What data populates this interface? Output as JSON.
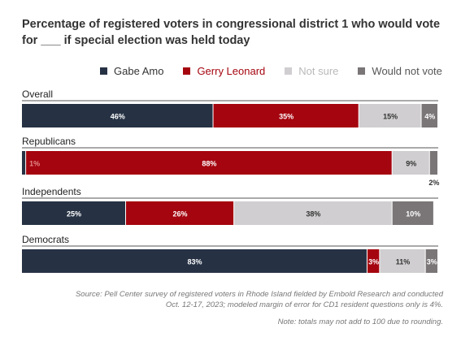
{
  "chart_data": {
    "type": "bar",
    "orientation": "horizontal",
    "stacked": true,
    "title": "Percentage of registered voters in congressional district 1 who would vote for ___ if special election was held today",
    "legend_position": "top",
    "series_names": [
      "Gabe Amo",
      "Gerry Leonard",
      "Not sure",
      "Would not vote"
    ],
    "colors": [
      "#263244",
      "#a5050f",
      "#d0ced0",
      "#7a7576"
    ],
    "label_colors": [
      "#ffffff",
      "#ffffff",
      "#333333",
      "#ffffff"
    ],
    "legend_text_colors": [
      "#333333",
      "#a5050f",
      "#b9b9b9",
      "#555555"
    ],
    "groups": [
      {
        "name": "Overall",
        "values": [
          46,
          35,
          15,
          4
        ]
      },
      {
        "name": "Republicans",
        "values": [
          1,
          88,
          9,
          2
        ]
      },
      {
        "name": "Independents",
        "values": [
          25,
          26,
          38,
          10
        ]
      },
      {
        "name": "Democrats",
        "values": [
          83,
          3,
          11,
          3
        ]
      }
    ],
    "value_suffix": "%",
    "xlim": [
      0,
      100
    ],
    "grid": false
  },
  "footer": {
    "source": "Source: Pell Center survey of registered voters in Rhode Island fielded by Embold Research and conducted Oct. 12-17, 2023; modeled margin of error for CD1 resident questions only is 4%.",
    "note": "Note: totals may not add to 100 due to rounding."
  }
}
